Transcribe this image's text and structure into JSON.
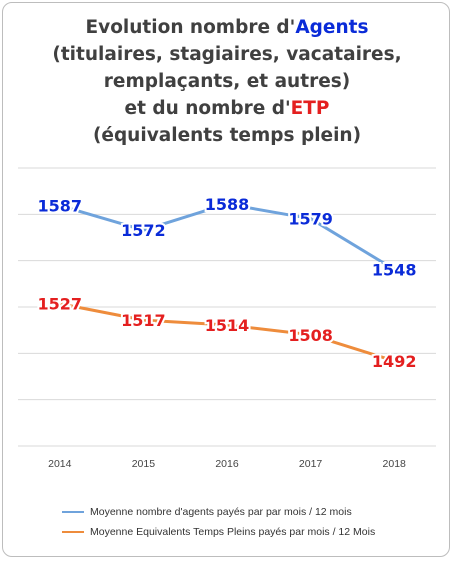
{
  "title": {
    "line1_prefix": "Evolution nombre d'",
    "line1_highlight": "Agents",
    "line2": "(titulaires, stagiaires, vacataires,",
    "line3": "remplaçants, et autres)",
    "line4_prefix": "et du nombre d'",
    "line4_highlight": "ETP",
    "line5": "(équivalents temps plein)"
  },
  "colors": {
    "agents_line": "#6fa3dc",
    "etp_line": "#ee8c3c",
    "agents_label": "#0a2bd8",
    "etp_label": "#e41f1f",
    "gridline": "#d9d9d9"
  },
  "chart_data": {
    "type": "line",
    "x": [
      "2014",
      "2015",
      "2016",
      "2017",
      "2018"
    ],
    "ylim": [
      1440,
      1610
    ],
    "grid": true,
    "legend_position": "bottom",
    "series": [
      {
        "name": "Moyenne nombre d'agents payés par par mois / 12 mois",
        "values": [
          1587,
          1572,
          1588,
          1579,
          1548
        ]
      },
      {
        "name": "Moyenne Equivalents Temps Pleins payés par mois / 12 Mois",
        "values": [
          1527,
          1517,
          1514,
          1508,
          1492
        ]
      }
    ]
  }
}
